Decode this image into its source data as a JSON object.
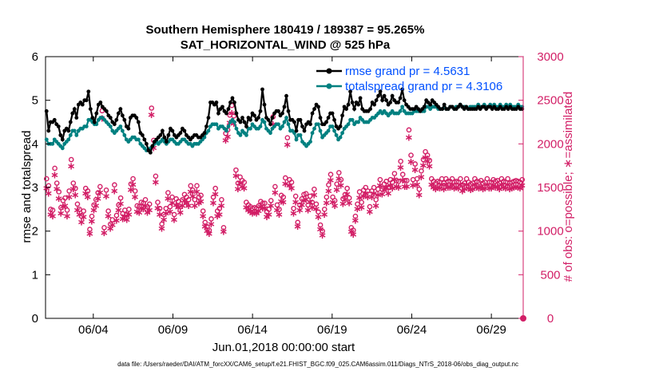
{
  "chart_data": {
    "type": "line",
    "title": "Southern Hemisphere 180419 / 189387 = 95.265%",
    "subtitle": "SAT_HORIZONTAL_WIND @ 525 hPa",
    "xlabel": "Jun.01,2018 00:00:00 start",
    "ylabel_left": "rmse and totalspread",
    "ylabel_right": "# of obs: o=possible; ∗=assimilated",
    "footer": "data file: /Users/raeder/DAI/ATM_forcXX/CAM6_setup/f.e21.FHIST_BGC.f09_025.CAM6assim.011/Diags_NTrS_2018-06/obs_diag_output.nc",
    "ylim_left": [
      0,
      6
    ],
    "yticks_left": [
      "0",
      "1",
      "2",
      "3",
      "4",
      "5",
      "6"
    ],
    "ylim_right": [
      0,
      3000
    ],
    "yticks_right": [
      "0",
      "500",
      "1000",
      "1500",
      "2000",
      "2500",
      "3000"
    ],
    "xlim_days": [
      1,
      31
    ],
    "xticks": [
      "06/04",
      "06/09",
      "06/14",
      "06/19",
      "06/24",
      "06/29"
    ],
    "legend": [
      "rmse grand pr = 4.5631",
      "totalspread grand pr = 4.3106"
    ],
    "grid": false,
    "colors": {
      "rmse": "#000000",
      "totalspread": "#008080",
      "obs": "#d21e66"
    },
    "series": [
      {
        "name": "rmse grand pr = 4.5631",
        "values": [
          4.75,
          4.3,
          4.5,
          4.5,
          4.55,
          4.45,
          4.4,
          4.2,
          4.1,
          4.3,
          4.35,
          4.3,
          4.5,
          4.7,
          4.8,
          4.6,
          4.9,
          4.95,
          4.9,
          5.0,
          5.0,
          5.2,
          4.8,
          4.6,
          4.5,
          4.7,
          4.9,
          4.95,
          4.85,
          4.8,
          4.75,
          4.65,
          4.6,
          4.5,
          4.45,
          4.55,
          4.7,
          4.8,
          4.65,
          4.55,
          4.4,
          4.35,
          4.6,
          4.65,
          4.65,
          4.6,
          4.5,
          4.25,
          4.2,
          4.1,
          4.0,
          3.85,
          3.8,
          3.95,
          4.05,
          4.1,
          4.15,
          4.2,
          4.3,
          4.15,
          4.05,
          4.2,
          4.35,
          4.3,
          4.2,
          4.15,
          4.2,
          4.25,
          4.35,
          4.3,
          4.2,
          4.15,
          4.1,
          4.15,
          4.2,
          4.2,
          4.15,
          4.15,
          4.2,
          4.25,
          4.4,
          4.6,
          4.95,
          4.95,
          4.9,
          4.95,
          4.7,
          4.8,
          4.85,
          4.75,
          4.7,
          4.8,
          4.95,
          5.05,
          4.95,
          4.7,
          4.55,
          4.5,
          4.6,
          4.5,
          4.4,
          4.6,
          4.55,
          4.7,
          4.65,
          4.55,
          4.6,
          4.75,
          5.25,
          4.9,
          4.6,
          4.55,
          4.45,
          4.6,
          4.7,
          4.75,
          4.75,
          4.65,
          4.7,
          4.85,
          5.1,
          4.75,
          4.55,
          4.55,
          4.5,
          4.3,
          4.55,
          4.55,
          4.4,
          4.3,
          4.45,
          4.5,
          4.45,
          4.7,
          4.8,
          4.9,
          4.85,
          4.6,
          4.45,
          4.45,
          4.5,
          4.6,
          4.7,
          4.7,
          4.55,
          4.4,
          4.35,
          4.4,
          4.65,
          4.85,
          4.8,
          4.9,
          5.2,
          4.95,
          4.8,
          4.95,
          4.9,
          5.05,
          4.8,
          4.75,
          4.75,
          4.75,
          4.8,
          4.95,
          4.9,
          5.0,
          5.1,
          5.2,
          5.0,
          5.1,
          5.0,
          4.9,
          4.95,
          5.1,
          5.0,
          4.95,
          4.95,
          5.05,
          5.25,
          5.0,
          4.9,
          4.85,
          4.8,
          4.8,
          4.8,
          4.85,
          4.8,
          4.75,
          4.8,
          4.85,
          5.0,
          4.95,
          4.9,
          5.0,
          4.95,
          4.9,
          4.85,
          4.8,
          4.8,
          4.9,
          4.8,
          4.8,
          4.85,
          4.85,
          4.8,
          4.8,
          4.85,
          4.9,
          4.85,
          4.8,
          4.85,
          4.8,
          4.8,
          4.8,
          4.8,
          4.8,
          4.85,
          4.8,
          4.85,
          4.85,
          4.8,
          4.85,
          4.85,
          4.8,
          4.85,
          4.8,
          4.8,
          4.85,
          4.8,
          4.8,
          4.85,
          4.8,
          4.85,
          4.8,
          4.8,
          4.8,
          4.85,
          4.8,
          4.8
        ]
      },
      {
        "name": "totalspread grand pr = 4.3106",
        "values": [
          4.1,
          4.0,
          4.0,
          4.0,
          4.1,
          4.05,
          4.0,
          3.95,
          3.9,
          4.0,
          4.05,
          4.1,
          4.2,
          4.3,
          4.3,
          4.2,
          4.3,
          4.35,
          4.35,
          4.4,
          4.4,
          4.55,
          4.55,
          4.5,
          4.45,
          4.45,
          4.55,
          4.6,
          4.6,
          4.55,
          4.5,
          4.45,
          4.4,
          4.3,
          4.25,
          4.3,
          4.35,
          4.4,
          4.3,
          4.2,
          4.1,
          4.05,
          4.1,
          4.15,
          4.15,
          4.1,
          4.1,
          4.0,
          3.95,
          3.9,
          3.85,
          3.85,
          3.9,
          3.95,
          4.0,
          4.05,
          4.0,
          4.05,
          4.1,
          4.05,
          4.0,
          4.05,
          4.1,
          4.1,
          4.05,
          4.0,
          4.0,
          4.05,
          4.1,
          4.1,
          4.05,
          4.0,
          4.0,
          3.95,
          4.0,
          4.0,
          4.0,
          4.05,
          4.1,
          4.15,
          4.25,
          4.3,
          4.4,
          4.45,
          4.45,
          4.45,
          4.35,
          4.4,
          4.4,
          4.35,
          4.3,
          4.4,
          4.5,
          4.55,
          4.5,
          4.35,
          4.25,
          4.2,
          4.3,
          4.25,
          4.2,
          4.35,
          4.35,
          4.45,
          4.4,
          4.35,
          4.35,
          4.4,
          4.55,
          4.5,
          4.35,
          4.3,
          4.25,
          4.35,
          4.4,
          4.45,
          4.45,
          4.35,
          4.4,
          4.5,
          4.6,
          4.45,
          4.3,
          4.3,
          4.25,
          4.1,
          4.2,
          4.2,
          4.05,
          4.0,
          3.95,
          4.0,
          4.05,
          4.25,
          4.35,
          4.45,
          4.45,
          4.3,
          4.15,
          4.2,
          4.25,
          4.3,
          4.4,
          4.4,
          4.3,
          4.2,
          4.1,
          4.15,
          4.25,
          4.35,
          4.4,
          4.45,
          4.55,
          4.55,
          4.45,
          4.5,
          4.5,
          4.6,
          4.55,
          4.5,
          4.5,
          4.5,
          4.55,
          4.6,
          4.6,
          4.65,
          4.7,
          4.75,
          4.7,
          4.75,
          4.7,
          4.65,
          4.7,
          4.75,
          4.7,
          4.7,
          4.7,
          4.75,
          4.85,
          4.75,
          4.7,
          4.7,
          4.7,
          4.7,
          4.75,
          4.75,
          4.75,
          4.75,
          4.75,
          4.75,
          4.85,
          4.85,
          4.8,
          4.85,
          4.85,
          4.85,
          4.8,
          4.8,
          4.8,
          4.85,
          4.8,
          4.8,
          4.85,
          4.85,
          4.8,
          4.85,
          4.85,
          4.9,
          4.85,
          4.85,
          4.85,
          4.8,
          4.85,
          4.85,
          4.85,
          4.85,
          4.9,
          4.85,
          4.85,
          4.9,
          4.85,
          4.85,
          4.9,
          4.85,
          4.9,
          4.85,
          4.85,
          4.9,
          4.85,
          4.85,
          4.9,
          4.85,
          4.9,
          4.85,
          4.85,
          4.85,
          4.9,
          4.85,
          4.85
        ]
      },
      {
        "name": "o=possible",
        "values": [
          1600,
          1520,
          1250,
          1240,
          1720,
          1550,
          1450,
          1270,
          1350,
          1380,
          1240,
          1460,
          1820,
          1550,
          1490,
          1310,
          1250,
          1170,
          1230,
          1490,
          1460,
          1020,
          1170,
          1300,
          1360,
          1440,
          1510,
          2380,
          1040,
          1470,
          1230,
          1080,
          1130,
          1530,
          1180,
          1300,
          1380,
          1200,
          1240,
          1190,
          1250,
          1540,
          1600,
          1460,
          1290,
          1280,
          1330,
          1320,
          1360,
          1280,
          1310,
          2410,
          2040,
          1630,
          1330,
          1260,
          1080,
          1190,
          1260,
          1440,
          1280,
          1390,
          1190,
          1370,
          1340,
          1280,
          1360,
          1420,
          1390,
          1360,
          1520,
          1470,
          1360,
          1520,
          1390,
          1410,
          1230,
          1100,
          1050,
          1010,
          1140,
          1390,
          1490,
          1230,
          1260,
          1360,
          1040,
          2120,
          2160,
          2330,
          2440,
          2320,
          1700,
          1550,
          1620,
          1580,
          1560,
          1330,
          1300,
          1280,
          1260,
          1270,
          1260,
          1290,
          1340,
          1320,
          1320,
          1220,
          1250,
          1350,
          2310,
          1510,
          1300,
          1250,
          1410,
          1390,
          1610,
          2070,
          1590,
          1560,
          1260,
          1400,
          1100,
          1300,
          1370,
          1420,
          1430,
          1300,
          1400,
          1330,
          1480,
          1310,
          1220,
          1070,
          1000,
          1250,
          1390,
          1530,
          1650,
          1390,
          1350,
          1540,
          1670,
          1590,
          1370,
          1420,
          1490,
          1380,
          1040,
          1010,
          1170,
          1310,
          1450,
          1330,
          1470,
          1500,
          1460,
          1280,
          1460,
          1500,
          1360,
          1480,
          1590,
          1480,
          1540,
          1570,
          1500,
          1590,
          1560,
          1660,
          1580,
          1570,
          1800,
          1650,
          1580,
          1580,
          2160,
          1870,
          1590,
          1770,
          1600,
          1480,
          1690,
          1820,
          1910,
          1870,
          1810,
          1600,
          1570,
          1550,
          1570,
          1560,
          1600,
          1550,
          1600,
          1570,
          1570,
          1600,
          1560,
          1570,
          1560,
          1600,
          1530,
          1550,
          1600,
          1560,
          1540,
          1550,
          1600,
          1570,
          1560,
          1580,
          1550,
          1560,
          1600,
          1560,
          1560,
          1590,
          1570,
          1580,
          1550,
          1600,
          1570,
          1560,
          1600,
          1550,
          1560,
          1570,
          1580,
          1570,
          1560,
          1590
        ]
      },
      {
        "name": "∗=assimilated",
        "values": [
          1500,
          1440,
          1200,
          1180,
          1650,
          1490,
          1380,
          1210,
          1290,
          1300,
          1180,
          1400,
          1750,
          1490,
          1420,
          1250,
          1200,
          1110,
          1170,
          1440,
          1400,
          980,
          1120,
          1250,
          1300,
          1380,
          1450,
          2300,
          990,
          1410,
          1180,
          1040,
          1080,
          1470,
          1130,
          1250,
          1320,
          1150,
          1180,
          1140,
          1200,
          1480,
          1540,
          1400,
          1230,
          1220,
          1270,
          1260,
          1300,
          1220,
          1250,
          2340,
          1960,
          1570,
          1270,
          1200,
          1040,
          1140,
          1210,
          1380,
          1230,
          1330,
          1140,
          1310,
          1280,
          1220,
          1300,
          1360,
          1330,
          1300,
          1460,
          1410,
          1300,
          1460,
          1330,
          1350,
          1180,
          1060,
          1010,
          980,
          1090,
          1330,
          1430,
          1180,
          1200,
          1300,
          1000,
          2050,
          2090,
          2250,
          2360,
          2240,
          1640,
          1490,
          1560,
          1520,
          1500,
          1280,
          1250,
          1230,
          1210,
          1220,
          1210,
          1240,
          1290,
          1270,
          1270,
          1170,
          1200,
          1300,
          2230,
          1450,
          1250,
          1200,
          1350,
          1340,
          1550,
          2000,
          1530,
          1500,
          1210,
          1340,
          1060,
          1250,
          1310,
          1360,
          1370,
          1250,
          1340,
          1280,
          1420,
          1260,
          1170,
          1030,
          960,
          1200,
          1330,
          1470,
          1590,
          1340,
          1300,
          1480,
          1610,
          1530,
          1320,
          1370,
          1430,
          1330,
          1000,
          970,
          1130,
          1260,
          1390,
          1280,
          1410,
          1440,
          1400,
          1230,
          1400,
          1440,
          1300,
          1420,
          1530,
          1430,
          1480,
          1510,
          1440,
          1530,
          1500,
          1600,
          1520,
          1510,
          1740,
          1590,
          1520,
          1520,
          2080,
          1800,
          1530,
          1710,
          1540,
          1420,
          1630,
          1760,
          1850,
          1810,
          1750,
          1540,
          1510,
          1490,
          1510,
          1500,
          1540,
          1490,
          1540,
          1510,
          1510,
          1540,
          1500,
          1510,
          1500,
          1540,
          1470,
          1490,
          1540,
          1500,
          1480,
          1490,
          1540,
          1510,
          1500,
          1520,
          1490,
          1500,
          1540,
          1500,
          1500,
          1530,
          1510,
          1520,
          1490,
          1540,
          1510,
          1500,
          1540,
          1490,
          1500,
          1510,
          1520,
          1510,
          1500,
          1530
        ]
      }
    ]
  }
}
